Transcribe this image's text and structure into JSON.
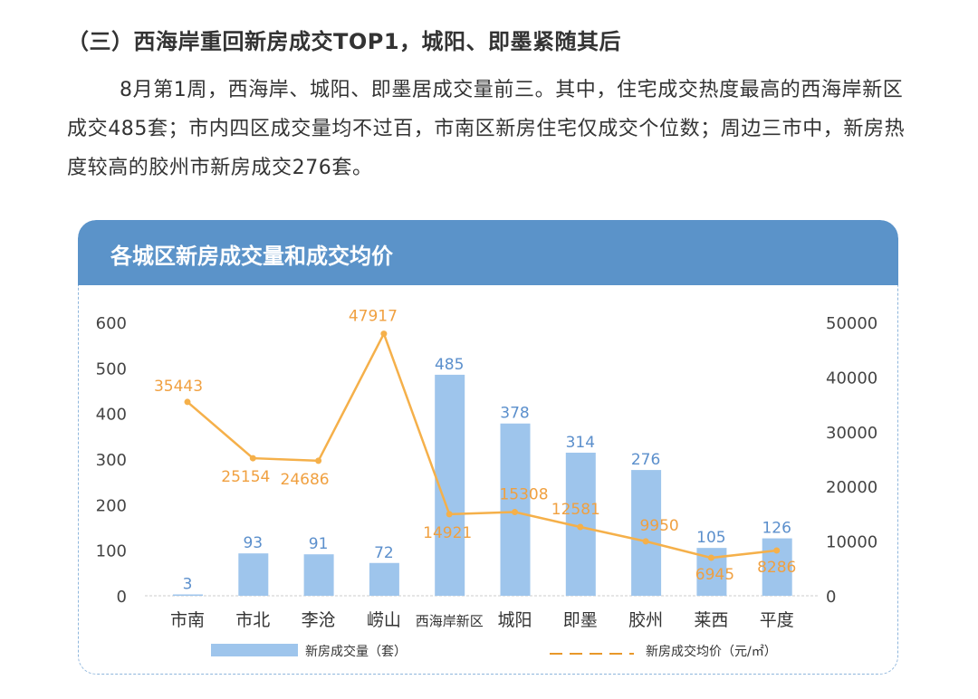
{
  "heading": "（三）西海岸重回新房成交TOP1，城阳、即墨紧随其后",
  "paragraph": "8月第1周，西海岸、城阳、即墨居成交量前三。其中，住宅成交热度最高的西海岸新区成交485套；市内四区成交量均不过百，市南区新房住宅仅成交个位数；周边三市中，新房热度较高的胶州市新房成交276套。",
  "chart_data": {
    "type": "bar+line",
    "title": "各城区新房成交量和成交均价",
    "categories": [
      "市南",
      "市北",
      "李沧",
      "崂山",
      "西海岸新区",
      "城阳",
      "即墨",
      "胶州",
      "莱西",
      "平度"
    ],
    "series": [
      {
        "name": "新房成交量（套）",
        "type": "bar",
        "axis": "left",
        "color": "#9ec5ec",
        "values": [
          3,
          93,
          91,
          72,
          485,
          378,
          314,
          276,
          105,
          126
        ]
      },
      {
        "name": "新房成交均价（元/㎡）",
        "type": "line",
        "axis": "right",
        "color": "#f5b04a",
        "values": [
          35443,
          25154,
          24686,
          47917,
          14921,
          15308,
          12581,
          9950,
          6945,
          8286
        ]
      }
    ],
    "left_axis": {
      "ylim": [
        0,
        600
      ],
      "ticks": [
        "0",
        "100",
        "200",
        "300",
        "400",
        "500",
        "600"
      ]
    },
    "right_axis": {
      "ylim": [
        0,
        50000
      ],
      "ticks": [
        "0",
        "10000",
        "20000",
        "30000",
        "40000",
        "50000"
      ]
    },
    "legend": "bottom"
  }
}
